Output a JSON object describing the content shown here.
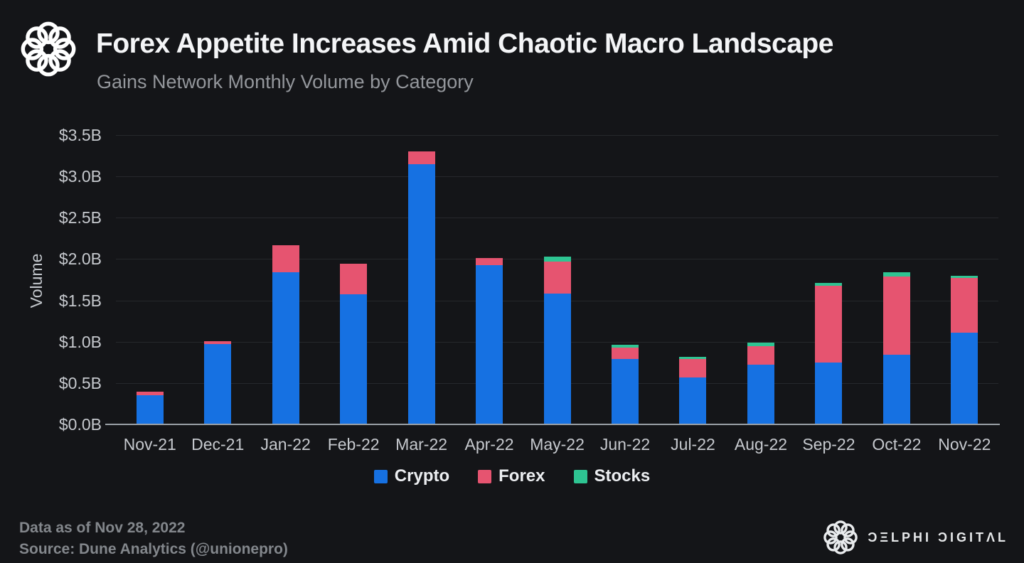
{
  "header": {
    "title": "Forex Appetite Increases Amid Chaotic Macro Landscape",
    "subtitle": "Gains Network Monthly Volume by Category"
  },
  "chart_data": {
    "type": "bar",
    "stacked": true,
    "title": "Gains Network Monthly Volume by Category",
    "xlabel": "",
    "ylabel": "Volume",
    "ylim": [
      0,
      3.5
    ],
    "grid": true,
    "legend_position": "bottom",
    "y_ticks": [
      "$3.5B",
      "$3.0B",
      "$2.5B",
      "$2.0B",
      "$1.5B",
      "$1.0B",
      "$0.5B",
      "$0.0B"
    ],
    "y_tick_values": [
      3.5,
      3.0,
      2.5,
      2.0,
      1.5,
      1.0,
      0.5,
      0.0
    ],
    "categories": [
      "Nov-21",
      "Dec-21",
      "Jan-22",
      "Feb-22",
      "Mar-22",
      "Apr-22",
      "May-22",
      "Jun-22",
      "Jul-22",
      "Aug-22",
      "Sep-22",
      "Oct-22",
      "Nov-22"
    ],
    "series": [
      {
        "name": "Crypto",
        "color": "#1671e2",
        "values": [
          0.35,
          0.97,
          1.84,
          1.57,
          3.15,
          1.93,
          1.58,
          0.79,
          0.57,
          0.72,
          0.75,
          0.84,
          1.11
        ]
      },
      {
        "name": "Forex",
        "color": "#e65470",
        "values": [
          0.05,
          0.04,
          0.33,
          0.37,
          0.15,
          0.08,
          0.39,
          0.14,
          0.22,
          0.23,
          0.93,
          0.95,
          0.66
        ]
      },
      {
        "name": "Stocks",
        "color": "#2ec492",
        "values": [
          0.0,
          0.0,
          0.0,
          0.0,
          0.0,
          0.0,
          0.06,
          0.03,
          0.03,
          0.04,
          0.03,
          0.05,
          0.03
        ]
      }
    ]
  },
  "footer": {
    "data_as_of": "Data as of Nov 28, 2022",
    "source": "Source: Dune Analytics (@unionepro)",
    "brand_name": "ƆΞLPHI ƆIGITΛL"
  },
  "colors": {
    "background": "#141518",
    "gridline": "#26282c",
    "axis": "#9aa0a6",
    "title": "#f4f5f7",
    "subtitle": "#94979c",
    "tick_label": "#c6c9ce",
    "footer_text": "#83878c"
  }
}
